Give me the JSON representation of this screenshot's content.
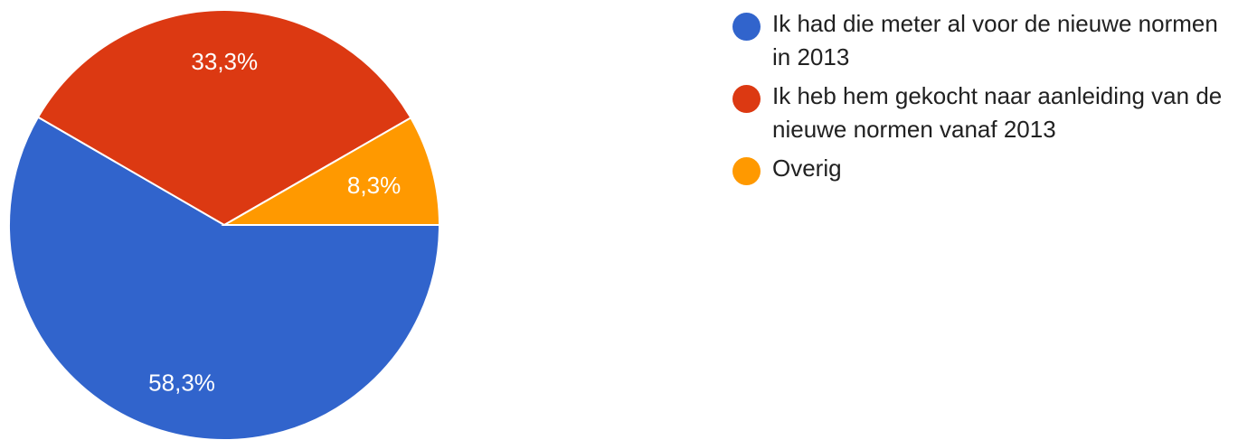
{
  "chart_data": {
    "type": "pie",
    "title": "",
    "slices": [
      {
        "label": "Ik had die meter al voor de nieuwe normen in 2013",
        "value": 58.3,
        "display": "58,3%",
        "color": "#3164CC"
      },
      {
        "label": "Ik heb hem gekocht naar aanleiding van de nieuwe normen vanaf 2013",
        "value": 33.3,
        "display": "33,3%",
        "color": "#DC3912"
      },
      {
        "label": "Overig",
        "value": 8.3,
        "display": "8,3%",
        "color": "#FF9900"
      }
    ],
    "legend": "right"
  },
  "legend": {
    "items": [
      {
        "label": "Ik had die meter al voor de nieuwe normen in 2013",
        "color": "#3164CC"
      },
      {
        "label": "Ik heb hem gekocht naar aanleiding van de nieuwe normen vanaf 2013",
        "color": "#DC3912"
      },
      {
        "label": "Overig",
        "color": "#FF9900"
      }
    ]
  }
}
